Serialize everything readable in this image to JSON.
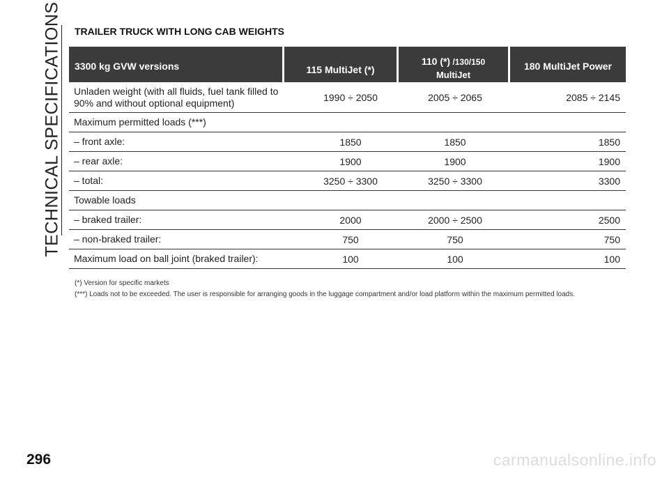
{
  "sidebar": {
    "section": "TECHNICAL SPECIFICATIONS"
  },
  "page": {
    "number": "296",
    "title": "TRAILER TRUCK WITH LONG CAB WEIGHTS"
  },
  "table": {
    "header": {
      "label": "3300 kg GVW versions",
      "col1": "115 MultiJet (*)",
      "col2_main": "110 (*)",
      "col2_variants": " /130/150",
      "col2_sub": "MultiJet",
      "col3": "180 MultiJet Power"
    },
    "rows": [
      {
        "label_line1": "Unladen weight (with all fluids, fuel tank filled to",
        "label_line2": "90% and without optional equipment)",
        "v1": "1990 ÷ 2050",
        "v2": "2005 ÷ 2065",
        "v3": "2085 ÷ 2145"
      },
      {
        "label": "Maximum permitted loads (***)",
        "v1": "",
        "v2": "",
        "v3": ""
      },
      {
        "label": "– front axle:",
        "v1": "1850",
        "v2": "1850",
        "v3": "1850"
      },
      {
        "label": "– rear axle:",
        "v1": "1900",
        "v2": "1900",
        "v3": "1900"
      },
      {
        "label": "– total:",
        "v1": "3250 ÷ 3300",
        "v2": "3250 ÷ 3300",
        "v3": "3300"
      },
      {
        "label": "Towable loads",
        "v1": "",
        "v2": "",
        "v3": ""
      },
      {
        "label": "– braked trailer:",
        "v1": "2000",
        "v2": "2000 ÷ 2500",
        "v3": "2500"
      },
      {
        "label": "– non-braked trailer:",
        "v1": "750",
        "v2": "750",
        "v3": "750"
      },
      {
        "label": "Maximum load on ball joint (braked trailer):",
        "v1": "100",
        "v2": "100",
        "v3": "100"
      }
    ]
  },
  "notes": [
    "(*) Version for specific markets",
    "(***) Loads not to be exceeded. The user is responsible for arranging goods in the luggage compartment and/or load platform within the maximum permitted loads."
  ],
  "watermark": "carmanualsonline.info"
}
